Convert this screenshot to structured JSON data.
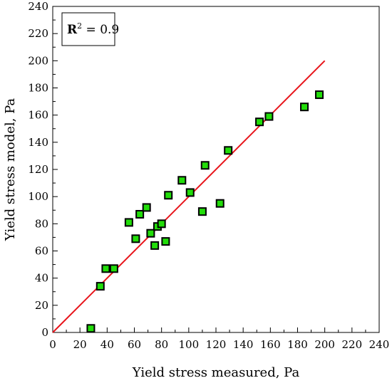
{
  "chart_data": {
    "type": "scatter",
    "xlabel": "Yield stress measured, Pa",
    "ylabel": "Yield stress model, Pa",
    "xlim": [
      0,
      240
    ],
    "ylim": [
      0,
      240
    ],
    "xticks": [
      0,
      20,
      40,
      60,
      80,
      100,
      120,
      140,
      160,
      180,
      200,
      220,
      240
    ],
    "yticks": [
      0,
      20,
      40,
      60,
      80,
      100,
      120,
      140,
      160,
      180,
      200,
      220,
      240
    ],
    "grid": false,
    "annotation": {
      "bold": "R",
      "superscript": "2",
      "text": " = 0.9"
    },
    "line": {
      "x": [
        0,
        200
      ],
      "y": [
        0,
        200
      ],
      "color": "#e8141b"
    },
    "marker_color": "#22dd0a",
    "points": [
      {
        "x": 28,
        "y": 3
      },
      {
        "x": 35,
        "y": 34
      },
      {
        "x": 39,
        "y": 47
      },
      {
        "x": 45,
        "y": 47
      },
      {
        "x": 56,
        "y": 81
      },
      {
        "x": 61,
        "y": 69
      },
      {
        "x": 64,
        "y": 87
      },
      {
        "x": 69,
        "y": 92
      },
      {
        "x": 72,
        "y": 73
      },
      {
        "x": 75,
        "y": 64
      },
      {
        "x": 77,
        "y": 78
      },
      {
        "x": 80,
        "y": 80
      },
      {
        "x": 83,
        "y": 67
      },
      {
        "x": 85,
        "y": 101
      },
      {
        "x": 95,
        "y": 112
      },
      {
        "x": 101,
        "y": 103
      },
      {
        "x": 110,
        "y": 89
      },
      {
        "x": 112,
        "y": 123
      },
      {
        "x": 123,
        "y": 95
      },
      {
        "x": 129,
        "y": 134
      },
      {
        "x": 152,
        "y": 155
      },
      {
        "x": 159,
        "y": 159
      },
      {
        "x": 185,
        "y": 166
      },
      {
        "x": 196,
        "y": 175
      }
    ]
  }
}
